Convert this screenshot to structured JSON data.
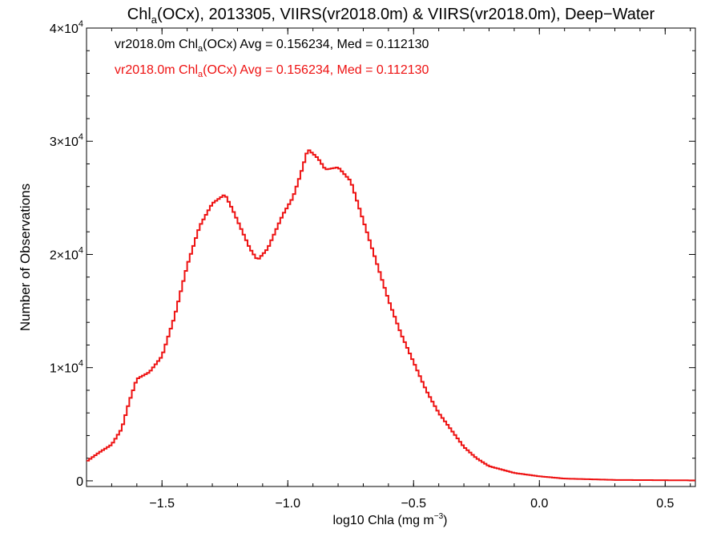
{
  "chart_data": {
    "type": "line",
    "title": {
      "prefix": "Chl",
      "sub": "a",
      "rest": "(OCx), 2013305, VIIRS(vr2018.0m) & VIIRS(vr2018.0m), Deep−Water"
    },
    "xlabel": {
      "text": "log10 Chla (mg m",
      "sup": "−3",
      "close": ")"
    },
    "ylabel": "Number of Observations",
    "xlim": [
      -1.8,
      0.62
    ],
    "ylim": [
      -500,
      40000
    ],
    "x_ticks": [
      {
        "value": -1.5,
        "label": "−1.5"
      },
      {
        "value": -1.0,
        "label": "−1.0"
      },
      {
        "value": -0.5,
        "label": "−0.5"
      },
      {
        "value": 0.0,
        "label": "0.0"
      },
      {
        "value": 0.5,
        "label": "0.5"
      }
    ],
    "y_ticks": [
      {
        "value": 0,
        "mant": "0",
        "exp": ""
      },
      {
        "value": 10000,
        "mant": "1×10",
        "exp": "4"
      },
      {
        "value": 20000,
        "mant": "2×10",
        "exp": "4"
      },
      {
        "value": 30000,
        "mant": "3×10",
        "exp": "4"
      },
      {
        "value": 40000,
        "mant": "4×10",
        "exp": "4"
      }
    ],
    "annotations": [
      {
        "pre": "vr2018.0m Chl",
        "sub": "a",
        "post": "(OCx) Avg = 0.156234, Med = 0.112130",
        "color": "#000000"
      },
      {
        "pre": "vr2018.0m Chl",
        "sub": "a",
        "post": "(OCx) Avg = 0.156234, Med = 0.112130",
        "color": "#ee1111"
      }
    ],
    "series": [
      {
        "color": "#ee1111",
        "points": [
          [
            -1.8,
            1700
          ],
          [
            -1.75,
            2500
          ],
          [
            -1.7,
            3200
          ],
          [
            -1.66,
            4600
          ],
          [
            -1.63,
            7000
          ],
          [
            -1.6,
            9000
          ],
          [
            -1.55,
            9600
          ],
          [
            -1.5,
            11000
          ],
          [
            -1.45,
            14500
          ],
          [
            -1.4,
            19000
          ],
          [
            -1.35,
            22500
          ],
          [
            -1.3,
            24500
          ],
          [
            -1.25,
            25300
          ],
          [
            -1.22,
            24000
          ],
          [
            -1.18,
            22000
          ],
          [
            -1.15,
            20500
          ],
          [
            -1.12,
            19500
          ],
          [
            -1.08,
            20500
          ],
          [
            -1.05,
            22000
          ],
          [
            -1.02,
            23500
          ],
          [
            -0.98,
            25000
          ],
          [
            -0.95,
            27000
          ],
          [
            -0.92,
            29300
          ],
          [
            -0.88,
            28500
          ],
          [
            -0.85,
            27500
          ],
          [
            -0.8,
            27700
          ],
          [
            -0.75,
            26500
          ],
          [
            -0.7,
            23000
          ],
          [
            -0.65,
            19500
          ],
          [
            -0.6,
            16000
          ],
          [
            -0.55,
            13000
          ],
          [
            -0.5,
            10500
          ],
          [
            -0.45,
            8000
          ],
          [
            -0.4,
            6000
          ],
          [
            -0.35,
            4500
          ],
          [
            -0.3,
            3000
          ],
          [
            -0.25,
            2000
          ],
          [
            -0.2,
            1300
          ],
          [
            -0.1,
            700
          ],
          [
            0.0,
            400
          ],
          [
            0.1,
            200
          ],
          [
            0.3,
            80
          ],
          [
            0.62,
            40
          ]
        ]
      }
    ]
  }
}
